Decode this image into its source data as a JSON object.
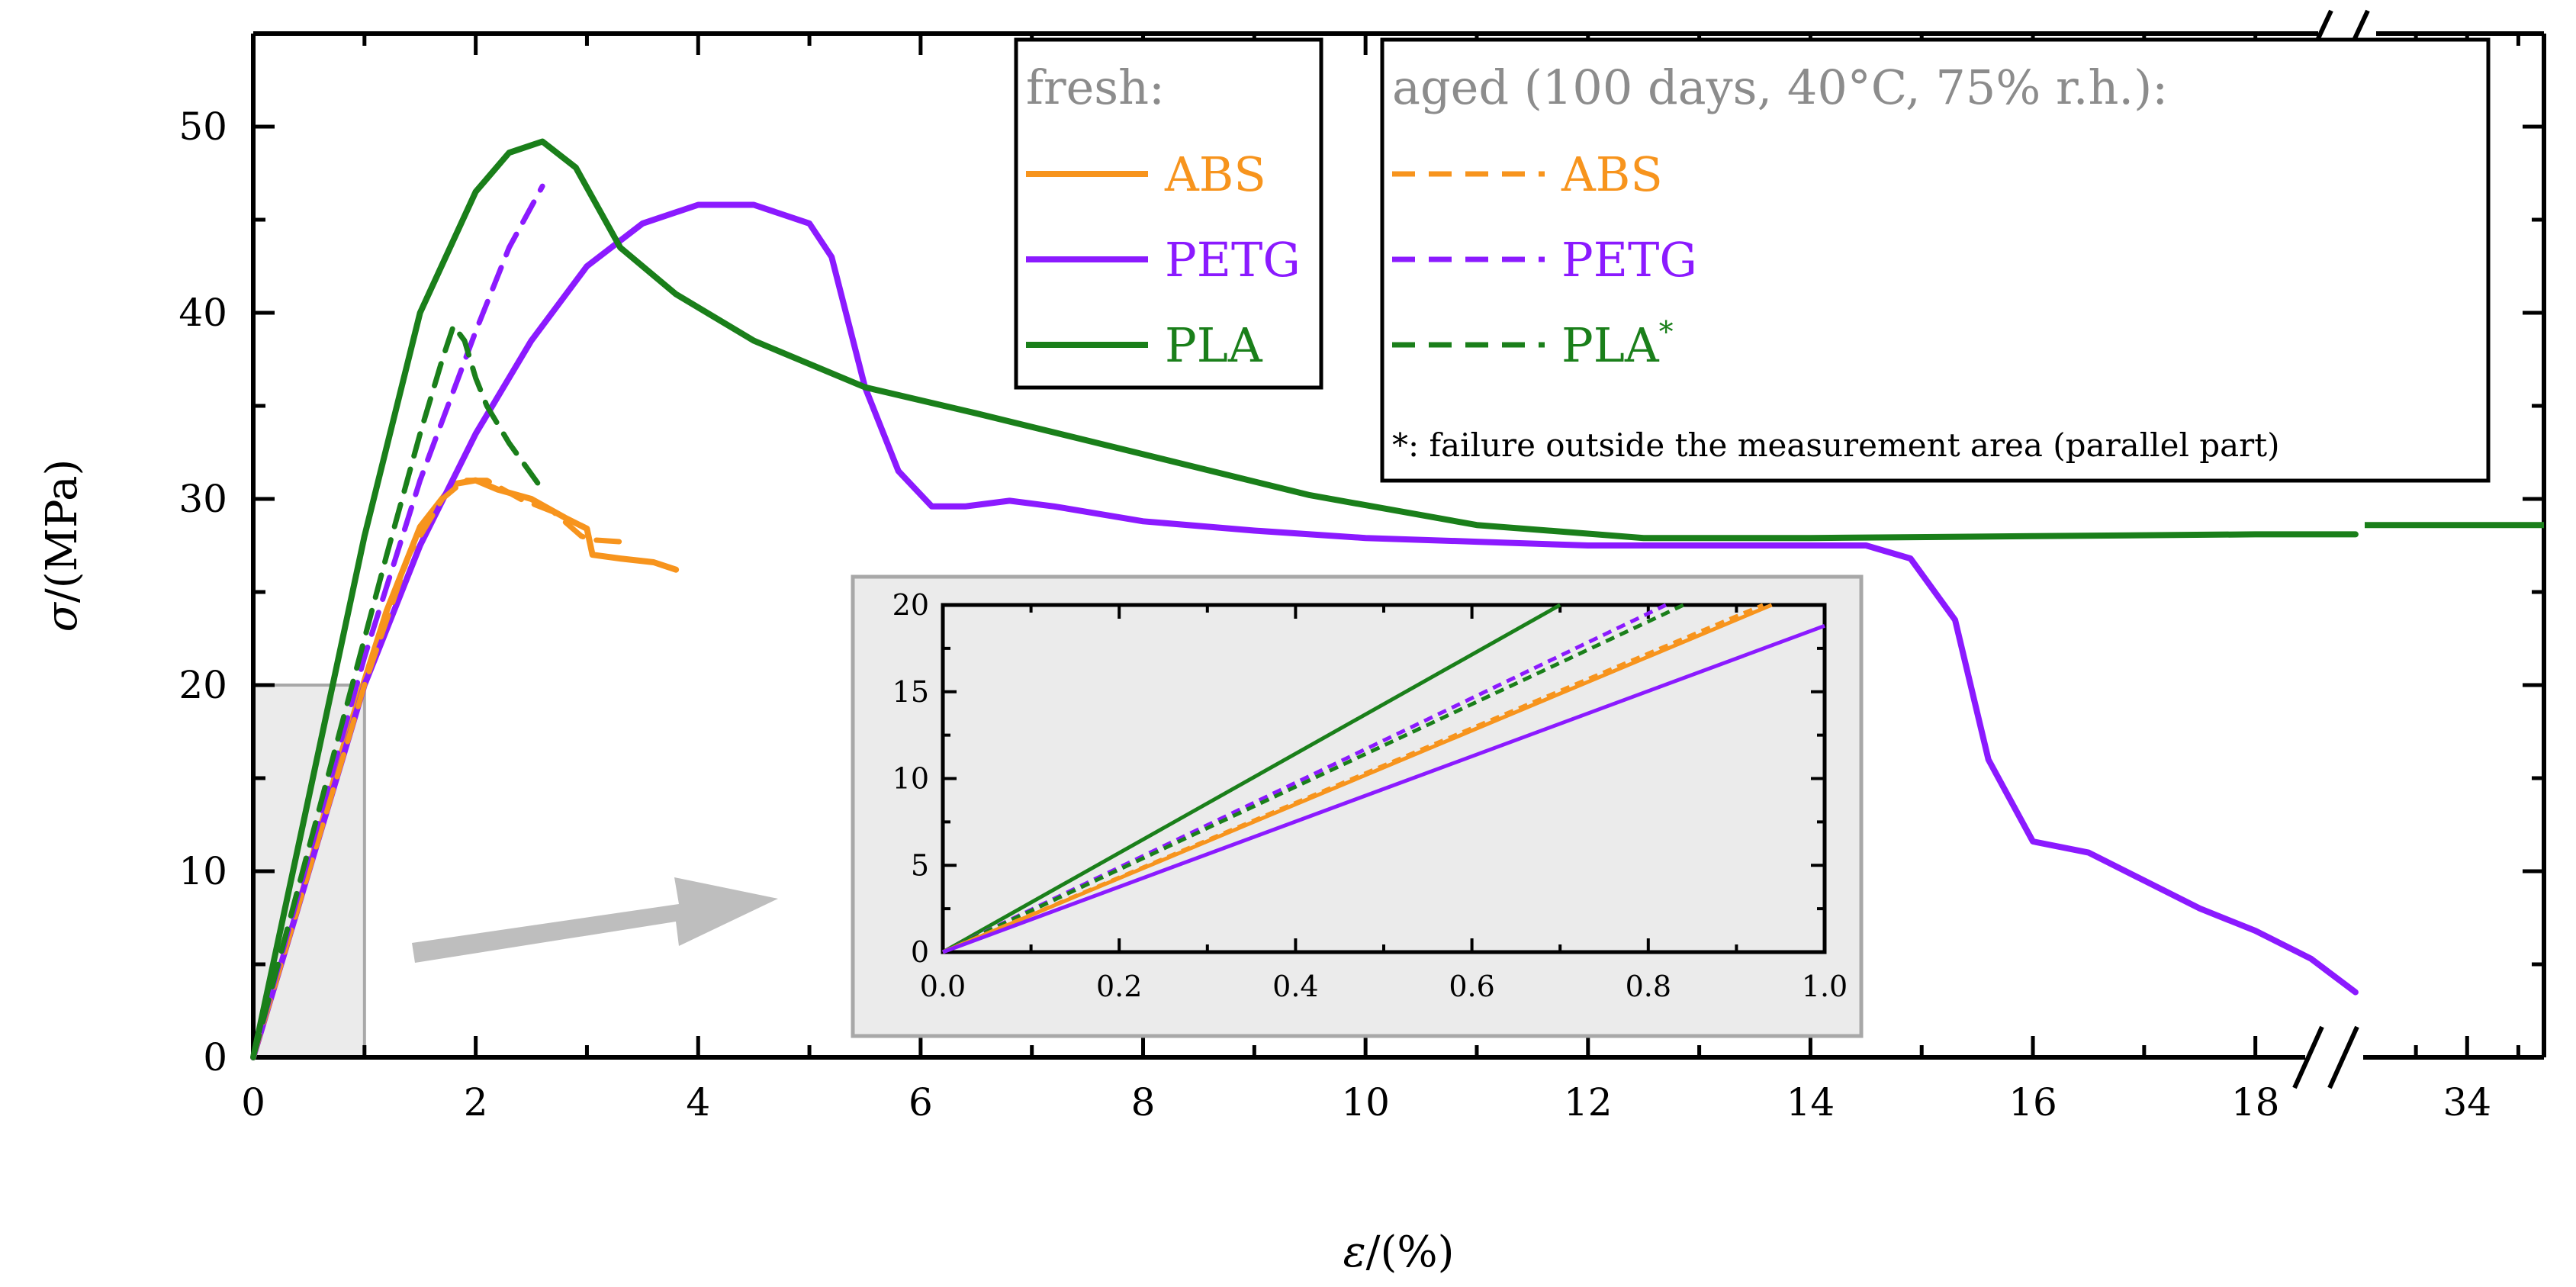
{
  "chart_data": {
    "type": "line",
    "xlabel_symbol": "ε",
    "xlabel_unit": "/(%)",
    "ylabel_symbol": "σ",
    "ylabel_unit": "/(MPa)",
    "xlim": [
      0,
      19.6
    ],
    "x_break": {
      "after": 18.9,
      "resume_label_value": 34,
      "resume_range": [
        32,
        35.5
      ]
    },
    "ylim": [
      0,
      55
    ],
    "x_ticks": [
      0,
      2,
      4,
      6,
      8,
      10,
      12,
      14,
      16,
      18
    ],
    "x_tick_labels": [
      "0",
      "2",
      "4",
      "6",
      "8",
      "10",
      "12",
      "14",
      "16",
      "18"
    ],
    "x_break_tick_label": "34",
    "y_ticks": [
      0,
      10,
      20,
      30,
      40,
      50
    ],
    "y_tick_labels": [
      "0",
      "10",
      "20",
      "30",
      "40",
      "50"
    ],
    "colors": {
      "ABS": "#f7941d",
      "PETG": "#8b1aff",
      "PLA": "#1a7f1a"
    },
    "legend_fresh": {
      "title": "fresh:",
      "entries": [
        "ABS",
        "PETG",
        "PLA"
      ]
    },
    "legend_aged": {
      "title": "aged (100 days, 40°C, 75% r.h.):",
      "entries": [
        "ABS",
        "PETG",
        "PLA"
      ],
      "pla_mark": "*"
    },
    "footnote": "*: failure outside the measurement area (parallel part)",
    "series": [
      {
        "name": "ABS",
        "condition": "fresh",
        "style": "solid",
        "x": [
          0,
          0.4,
          0.8,
          1.2,
          1.5,
          1.8,
          2.0,
          2.2,
          2.5,
          2.8,
          3.0,
          3.05,
          3.3,
          3.6,
          3.8
        ],
        "y": [
          0,
          8,
          16.5,
          24,
          28.5,
          30.8,
          31,
          30.5,
          30,
          29,
          28.4,
          27,
          26.8,
          26.6,
          26.2
        ]
      },
      {
        "name": "PETG",
        "condition": "fresh",
        "style": "solid",
        "x": [
          0,
          0.5,
          1.0,
          1.5,
          2.0,
          2.5,
          3.0,
          3.5,
          4.0,
          4.5,
          5.0,
          5.2,
          5.5,
          5.8,
          6.1,
          6.4,
          6.8,
          7.2,
          8,
          9,
          10,
          11,
          12,
          13,
          14,
          14.5,
          14.9,
          15.3,
          15.6,
          16.0,
          16.5,
          17,
          17.5,
          18,
          18.5,
          18.9
        ],
        "y": [
          0,
          10,
          20,
          27.5,
          33.5,
          38.5,
          42.5,
          44.8,
          45.8,
          45.8,
          44.8,
          43,
          36,
          31.5,
          29.6,
          29.6,
          29.9,
          29.6,
          28.8,
          28.3,
          27.9,
          27.7,
          27.5,
          27.5,
          27.5,
          27.5,
          26.8,
          23.5,
          16,
          11.6,
          11,
          9.5,
          8,
          6.8,
          5.3,
          3.5
        ]
      },
      {
        "name": "PLA",
        "condition": "fresh",
        "style": "solid",
        "x": [
          0,
          0.5,
          1.0,
          1.5,
          2.0,
          2.3,
          2.6,
          2.9,
          3.3,
          3.8,
          4.5,
          5.5,
          6.5,
          8,
          9.5,
          11,
          12.5,
          14,
          16,
          18,
          18.9
        ],
        "y": [
          0,
          14,
          28,
          40,
          46.5,
          48.6,
          49.2,
          47.8,
          43.5,
          41,
          38.5,
          36,
          34.6,
          32.4,
          30.2,
          28.6,
          27.9,
          27.9,
          28.0,
          28.1,
          28.1
        ],
        "break_segment": {
          "x": [
            32,
            35.5
          ],
          "y": [
            28.6,
            28.6
          ]
        }
      },
      {
        "name": "ABS",
        "condition": "aged",
        "style": "dash",
        "x": [
          0,
          0.5,
          1.0,
          1.4,
          1.7,
          1.9,
          2.1,
          2.4,
          2.7,
          2.95,
          3.05,
          3.3
        ],
        "y": [
          0,
          10,
          20,
          27,
          30,
          31,
          31,
          30,
          29.3,
          28,
          27.8,
          27.7
        ]
      },
      {
        "name": "PETG",
        "condition": "aged",
        "style": "dash",
        "x": [
          0,
          0.5,
          1.0,
          1.5,
          2.0,
          2.3,
          2.6
        ],
        "y": [
          0,
          10.8,
          21.5,
          31,
          39,
          43.5,
          46.8
        ]
      },
      {
        "name": "PLA",
        "condition": "aged",
        "style": "dash",
        "x": [
          0,
          0.4,
          0.8,
          1.2,
          1.5,
          1.7,
          1.8,
          1.9,
          2.0,
          2.1,
          2.3,
          2.6
        ],
        "y": [
          0,
          9,
          18,
          27,
          33.5,
          37.5,
          39.3,
          38.5,
          36.5,
          35,
          33,
          30.5
        ]
      }
    ],
    "inset": {
      "xlim": [
        0,
        1.0
      ],
      "ylim": [
        0,
        20
      ],
      "x_ticks": [
        0,
        0.2,
        0.4,
        0.6,
        0.8,
        1.0
      ],
      "x_tick_labels": [
        "0.0",
        "0.2",
        "0.4",
        "0.6",
        "0.8",
        "1.0"
      ],
      "y_ticks": [
        0,
        5,
        10,
        15,
        20
      ],
      "y_tick_labels": [
        "0",
        "5",
        "10",
        "15",
        "20"
      ],
      "series": [
        {
          "name": "PLA",
          "condition": "fresh",
          "style": "solid",
          "x": [
            0,
            0.7
          ],
          "y": [
            0,
            20
          ]
        },
        {
          "name": "PETG",
          "condition": "aged",
          "style": "dash",
          "x": [
            0,
            0.82
          ],
          "y": [
            0,
            20
          ]
        },
        {
          "name": "PLA",
          "condition": "aged",
          "style": "dash",
          "x": [
            0,
            0.84
          ],
          "y": [
            0,
            20
          ]
        },
        {
          "name": "ABS",
          "condition": "aged",
          "style": "dash",
          "x": [
            0,
            0.93
          ],
          "y": [
            0,
            20
          ]
        },
        {
          "name": "ABS",
          "condition": "fresh",
          "style": "solid",
          "x": [
            0,
            0.94
          ],
          "y": [
            0,
            20
          ]
        },
        {
          "name": "PETG",
          "condition": "fresh",
          "style": "solid",
          "x": [
            0,
            1.0
          ],
          "y": [
            0,
            18.8
          ]
        }
      ]
    }
  }
}
